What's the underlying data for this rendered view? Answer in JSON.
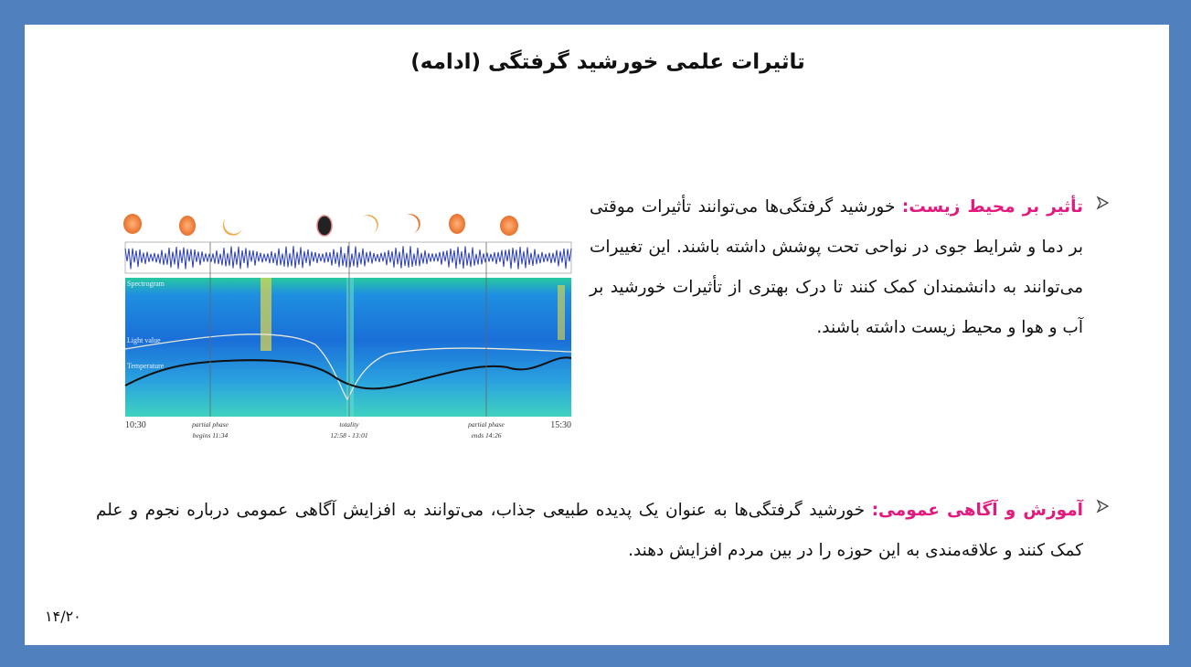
{
  "title": "تاثیرات علمی خورشید گرفتگی (ادامه)",
  "figure": {
    "labels": {
      "spectrogram": "Spectrogram",
      "light": "Light value",
      "temperature": "Temperature"
    },
    "times": [
      {
        "time": "10:30"
      },
      {
        "caption": "partial phase",
        "time": "begins 11:34"
      },
      {
        "caption": "totality",
        "time": "12:58 - 13:01"
      },
      {
        "caption": "partial phase",
        "time": "ends 14:26"
      },
      {
        "time": "15:30"
      }
    ]
  },
  "bullets": [
    {
      "heading": "تأثیر بر محیط زیست:",
      "body": "خورشید گرفتگی‌ها می‌توانند تأثیرات موقتی بر دما و شرایط جوی در نواحی تحت پوشش داشته باشند. این تغییرات می‌توانند به دانشمندان کمک کنند تا درک بهتری از تأثیرات خورشید بر آب و هوا و محیط زیست داشته باشند."
    },
    {
      "heading": "آموزش و آگاهی عمومی:",
      "body": "خورشید گرفتگی‌ها به عنوان یک پدیده طبیعی جذاب، می‌توانند به افزایش آگاهی عمومی درباره نجوم و علم کمک کنند و علاقه‌مندی به این حوزه را در بین مردم افزایش دهند."
    }
  ],
  "page_number": "۱۴/۲۰"
}
